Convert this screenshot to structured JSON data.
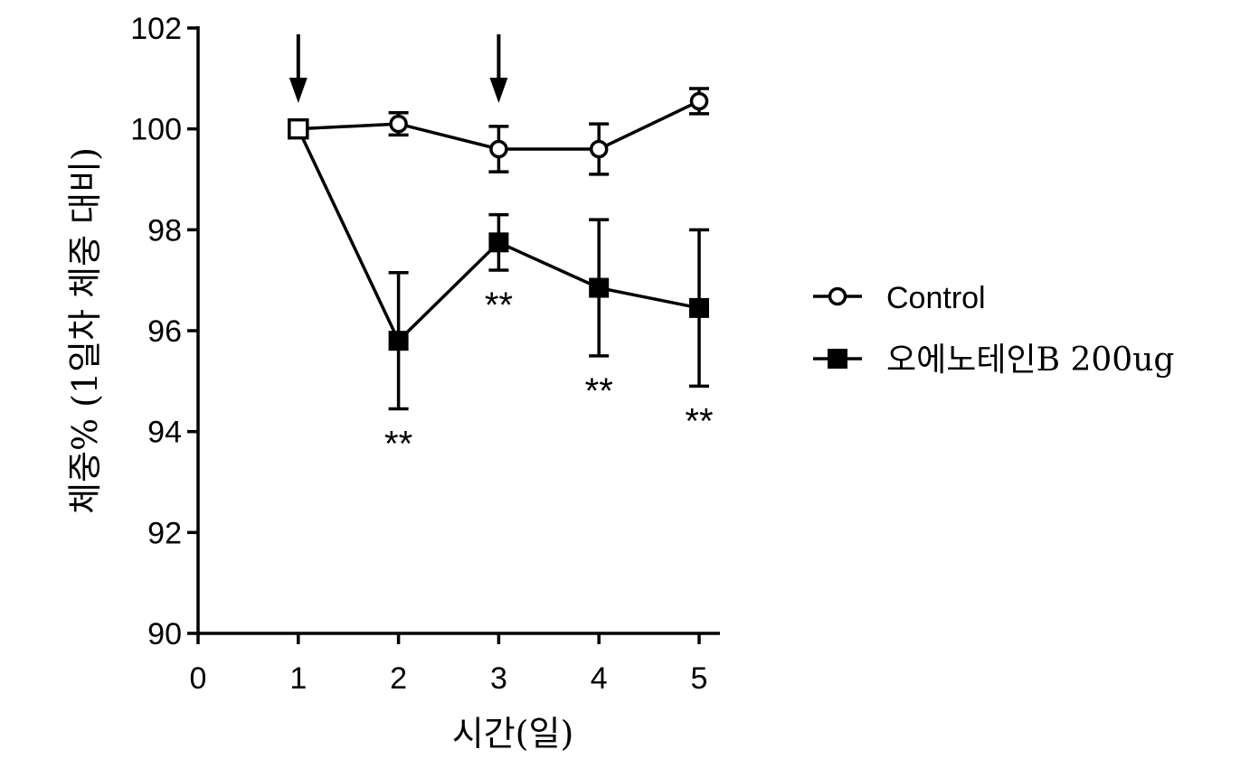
{
  "chart_data": {
    "type": "line",
    "title": "",
    "xlabel": "시간(일)",
    "ylabel": "체중% (1일차 체중 대비)",
    "xlim": [
      0,
      5
    ],
    "ylim": [
      90,
      102
    ],
    "x_ticks": [
      0,
      1,
      2,
      3,
      4,
      5
    ],
    "x_tick_labels": [
      "0",
      "1",
      "2",
      "3",
      "4",
      "5"
    ],
    "y_ticks": [
      90,
      92,
      94,
      96,
      98,
      100,
      102
    ],
    "y_tick_labels": [
      "90",
      "92",
      "94",
      "96",
      "98",
      "100",
      "102"
    ],
    "grid": false,
    "legend_position": "right",
    "series": [
      {
        "name": "Control",
        "marker": "open-circle",
        "color": "#000000",
        "x": [
          1,
          2,
          3,
          4,
          5
        ],
        "values": [
          100.0,
          100.1,
          99.6,
          99.6,
          100.55
        ],
        "error": [
          0.0,
          0.22,
          0.45,
          0.5,
          0.25
        ]
      },
      {
        "name": "오에노테인B 200ug",
        "marker": "filled-square",
        "color": "#000000",
        "x": [
          1,
          2,
          3,
          4,
          5
        ],
        "values": [
          100.0,
          95.8,
          97.75,
          96.85,
          96.45
        ],
        "error": [
          0.0,
          1.35,
          0.55,
          1.35,
          1.55
        ]
      }
    ],
    "annotations": {
      "arrows_at_x": [
        1,
        3
      ],
      "significance": [
        {
          "x": 2,
          "text": "**",
          "position": "below"
        },
        {
          "x": 3,
          "text": "**",
          "position": "below"
        },
        {
          "x": 4,
          "text": "**",
          "position": "below"
        },
        {
          "x": 5,
          "text": "**",
          "position": "below"
        }
      ]
    }
  }
}
